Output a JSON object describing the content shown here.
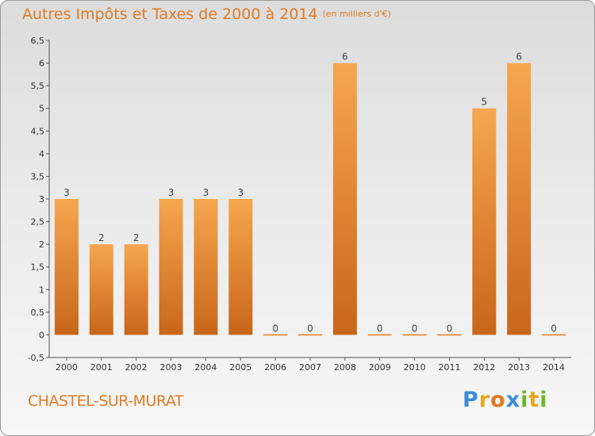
{
  "title": "Autres Impôts et Taxes de 2000 à 2014",
  "unit_note": "(en milliers d'€)",
  "commune": "CHASTEL-SUR-MURAT",
  "logo": {
    "letters": [
      "P",
      "r",
      "o",
      "x",
      "i",
      "t",
      "i"
    ],
    "colors": [
      "#3a8fd6",
      "#e6a81c",
      "#e07a22",
      "#3a8fd6",
      "#6cb82c",
      "#e6a81c",
      "#6cb82c"
    ]
  },
  "colors": {
    "bar_light": "#f6a650",
    "bar_dark": "#c8661a",
    "accent": "#e07a22"
  },
  "chart_data": {
    "type": "bar",
    "title": "Autres Impôts et Taxes de 2000 à 2014",
    "subtitle": "(en milliers d'€)",
    "xlabel": "",
    "ylabel": "",
    "categories": [
      "2000",
      "2001",
      "2002",
      "2003",
      "2004",
      "2005",
      "2006",
      "2007",
      "2008",
      "2009",
      "2010",
      "2011",
      "2012",
      "2013",
      "2014"
    ],
    "values": [
      3,
      2,
      2,
      3,
      3,
      3,
      0,
      0,
      6,
      0,
      0,
      0,
      5,
      6,
      0
    ],
    "data_labels": [
      "3",
      "2",
      "2",
      "3",
      "3",
      "3",
      "0",
      "0",
      "6",
      "0",
      "0",
      "0",
      "5",
      "6",
      "0"
    ],
    "ylim": [
      -0.5,
      6.5
    ],
    "yticks": [
      "-0,5",
      "0",
      "0,5",
      "1",
      "1,5",
      "2",
      "2,5",
      "3",
      "3,5",
      "4",
      "4,5",
      "5",
      "5,5",
      "6",
      "6,5"
    ],
    "ytick_values": [
      -0.5,
      0,
      0.5,
      1,
      1.5,
      2,
      2.5,
      3,
      3.5,
      4,
      4.5,
      5,
      5.5,
      6,
      6.5
    ],
    "grid": false,
    "legend": "none"
  }
}
